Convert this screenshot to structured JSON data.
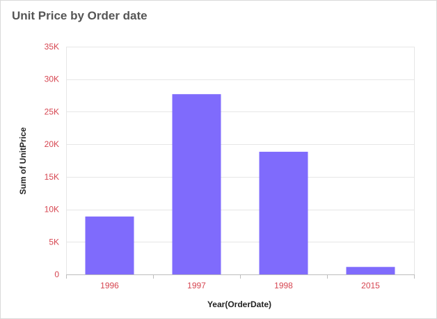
{
  "widget": {
    "title": "Unit Price by Order date"
  },
  "colors": {
    "bar": "#7f6bfc",
    "tick_text": "#d64550",
    "grid": "#e6e6e6",
    "axis": "#bdbdbd",
    "title": "#555555",
    "axis_title": "#222222"
  },
  "chart_data": {
    "type": "bar",
    "title": "Unit Price by Order date",
    "xlabel": "Year(OrderDate)",
    "ylabel": "Sum of UnitPrice",
    "categories": [
      "1996",
      "1997",
      "1998",
      "2015"
    ],
    "series": [
      {
        "values": [
          8900,
          27700,
          18850,
          1150
        ]
      }
    ],
    "ylim": [
      0,
      35000
    ],
    "yticks": [
      0,
      5000,
      10000,
      15000,
      20000,
      25000,
      30000,
      35000
    ],
    "ytick_labels": [
      "0",
      "5K",
      "10K",
      "15K",
      "20K",
      "25K",
      "30K",
      "35K"
    ],
    "grid": true,
    "legend": "none"
  }
}
